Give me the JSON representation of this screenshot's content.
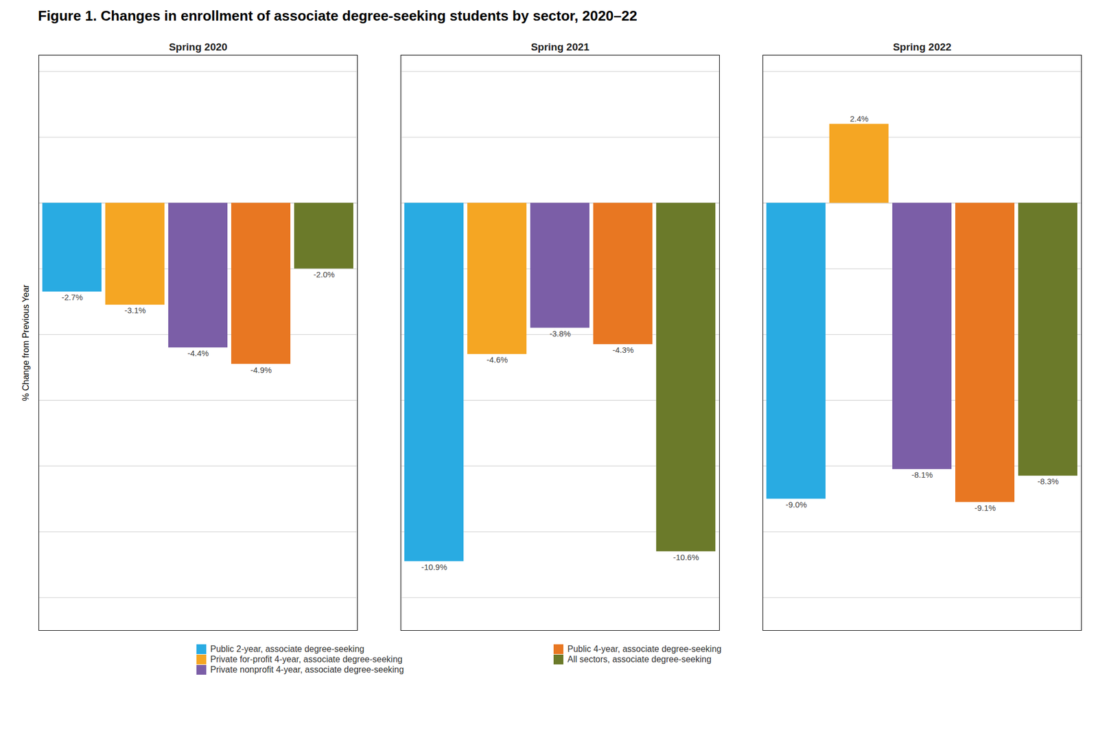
{
  "chart_data": {
    "type": "bar",
    "title": "Figure 1. Changes in enrollment of associate degree-seeking students by sector, 2020–22",
    "ylabel": "% Change from Previous Year",
    "categories": [
      "Spring 2020",
      "Spring 2021",
      "Spring 2022"
    ],
    "series": [
      {
        "name": "Public 2-year, associate degree-seeking",
        "color": "#29ABE2",
        "values": [
          -2.7,
          -10.9,
          -9.0
        ],
        "value_labels": [
          "-2.7%",
          "-10.9%",
          "-9.0%"
        ]
      },
      {
        "name": "Private for-profit 4-year, associate degree-seeking",
        "color": "#F5A623",
        "values": [
          -3.1,
          -4.6,
          2.4
        ],
        "value_labels": [
          "-3.1%",
          "-4.6%",
          "2.4%"
        ]
      },
      {
        "name": "Private nonprofit 4-year, associate degree-seeking",
        "color": "#7B5EA7",
        "values": [
          -4.4,
          -3.8,
          -8.1
        ],
        "value_labels": [
          "-4.4%",
          "-3.8%",
          "-8.1%"
        ]
      },
      {
        "name": "Public 4-year, associate degree-seeking",
        "color": "#E87722",
        "values": [
          -4.9,
          -4.3,
          -9.1
        ],
        "value_labels": [
          "-4.9%",
          "-4.3%",
          "-9.1%"
        ]
      },
      {
        "name": "All sectors, associate degree-seeking",
        "color": "#6B7A2A",
        "values": [
          -2.0,
          -10.6,
          -8.3
        ],
        "value_labels": [
          "-2.0%",
          "-10.6%",
          "-8.3%"
        ]
      }
    ],
    "ylim": [
      -13,
      4.5
    ],
    "yticks": [
      -12,
      -10,
      -8,
      -6,
      -4,
      -2,
      0,
      2,
      4
    ],
    "grid": true,
    "tick_labels": false,
    "data_labels": true,
    "legend": "bottom"
  }
}
